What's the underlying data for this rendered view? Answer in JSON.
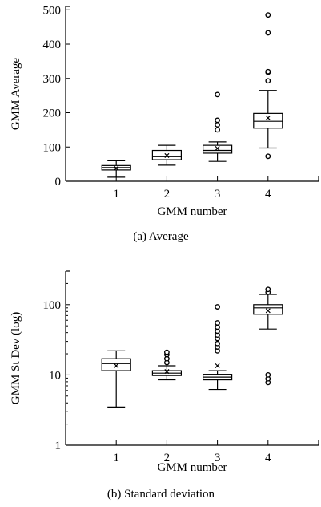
{
  "chart_data": [
    {
      "type": "box",
      "id": "avg",
      "caption": "(a) Average",
      "xlabel": "GMM number",
      "ylabel": "GMM Average",
      "yscale": "linear",
      "ylim": [
        0,
        510
      ],
      "yticks": [
        0,
        100,
        200,
        300,
        400,
        500
      ],
      "ytick_labels": [
        "0",
        "100",
        "200",
        "300",
        "400",
        "500"
      ],
      "categories": [
        "1",
        "2",
        "3",
        "4"
      ],
      "boxes": [
        {
          "whisker_low": 12,
          "q1": 33,
          "median": 40,
          "q3": 46,
          "whisker_high": 60,
          "mean": 38,
          "outliers": []
        },
        {
          "whisker_low": 47,
          "q1": 63,
          "median": 72,
          "q3": 90,
          "whisker_high": 105,
          "mean": 75,
          "outliers": []
        },
        {
          "whisker_low": 58,
          "q1": 82,
          "median": 90,
          "q3": 105,
          "whisker_high": 115,
          "mean": 96,
          "outliers": [
            150,
            165,
            178,
            253
          ]
        },
        {
          "whisker_low": 97,
          "q1": 155,
          "median": 175,
          "q3": 198,
          "whisker_high": 265,
          "mean": 185,
          "outliers": [
            73,
            293,
            318,
            320,
            433,
            485
          ]
        }
      ]
    },
    {
      "type": "box",
      "id": "std",
      "caption": "(b) Standard deviation",
      "xlabel": "GMM number",
      "ylabel": "GMM St Dev (log)",
      "yscale": "log",
      "ylim": [
        1,
        300
      ],
      "yticks": [
        1,
        10,
        100
      ],
      "ytick_labels": [
        "1",
        "10",
        "100"
      ],
      "categories": [
        "1",
        "2",
        "3",
        "4"
      ],
      "boxes": [
        {
          "whisker_low": 3.5,
          "q1": 11.5,
          "median": 14.5,
          "q3": 17,
          "whisker_high": 22,
          "mean": 13.5,
          "outliers": []
        },
        {
          "whisker_low": 8.5,
          "q1": 9.8,
          "median": 10.6,
          "q3": 11.5,
          "whisker_high": 13.5,
          "mean": 11.2,
          "outliers": [
            15,
            17,
            19.5,
            21
          ]
        },
        {
          "whisker_low": 6.2,
          "q1": 8.5,
          "median": 9.3,
          "q3": 10.2,
          "whisker_high": 11.5,
          "mean": 13.5,
          "outliers": [
            22,
            25,
            28,
            33,
            37,
            42,
            48,
            55,
            93
          ]
        },
        {
          "whisker_low": 45,
          "q1": 73,
          "median": 90,
          "q3": 100,
          "whisker_high": 140,
          "mean": 82,
          "outliers": [
            7.8,
            8.8,
            10,
            150,
            165
          ]
        }
      ]
    }
  ]
}
